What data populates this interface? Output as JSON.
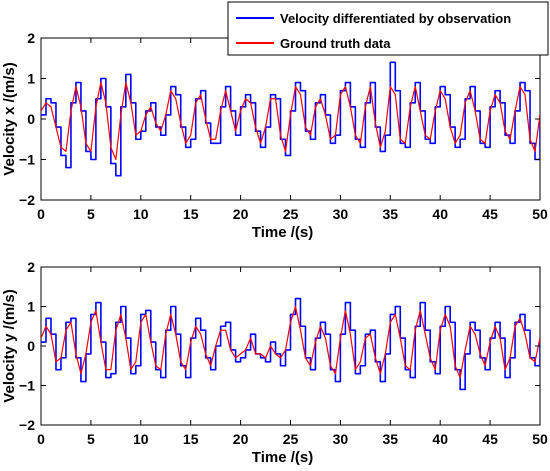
{
  "chart_data": [
    {
      "type": "line",
      "title": "",
      "xlabel": "Time /(s)",
      "ylabel": "Velocity x /(m/s)",
      "xlim": [
        0,
        50
      ],
      "ylim": [
        -2,
        2
      ],
      "xticks": [
        0,
        5,
        10,
        15,
        20,
        25,
        30,
        35,
        40,
        45,
        50
      ],
      "yticks": [
        -2,
        -1,
        0,
        1,
        2
      ],
      "grid": false,
      "legend_position": "top-right",
      "legend": [
        "Velocity differentiated by observation",
        "Ground truth data"
      ],
      "series_styles": [
        {
          "name": "Velocity differentiated by observation",
          "color": "#0000ff",
          "style": "step"
        },
        {
          "name": "Ground truth data",
          "color": "#ff0000",
          "style": "smooth"
        }
      ],
      "series": [
        {
          "name": "Velocity differentiated by observation",
          "x": [
            0,
            0.5,
            1,
            1.5,
            2,
            2.5,
            3,
            3.5,
            4,
            4.5,
            5,
            5.5,
            6,
            6.5,
            7,
            7.5,
            8,
            8.5,
            9,
            9.5,
            10,
            10.5,
            11,
            11.5,
            12,
            12.5,
            13,
            13.5,
            14,
            14.5,
            15,
            15.5,
            16,
            16.5,
            17,
            17.5,
            18,
            18.5,
            19,
            19.5,
            20,
            20.5,
            21,
            21.5,
            22,
            22.5,
            23,
            23.5,
            24,
            24.5,
            25,
            25.5,
            26,
            26.5,
            27,
            27.5,
            28,
            28.5,
            29,
            29.5,
            30,
            30.5,
            31,
            31.5,
            32,
            32.5,
            33,
            33.5,
            34,
            34.5,
            35,
            35.5,
            36,
            36.5,
            37,
            37.5,
            38,
            38.5,
            39,
            39.5,
            40,
            40.5,
            41,
            41.5,
            42,
            42.5,
            43,
            43.5,
            44,
            44.5,
            45,
            45.5,
            46,
            46.5,
            47,
            47.5,
            48,
            48.5,
            49,
            49.5,
            50
          ],
          "y": [
            0.1,
            0.5,
            0.4,
            -0.2,
            -0.9,
            -1.2,
            0.4,
            0.9,
            0.2,
            -0.8,
            -1.0,
            0.5,
            1.0,
            0.3,
            -1.1,
            -1.4,
            0.3,
            1.1,
            0.4,
            -0.5,
            -0.3,
            0.2,
            0.4,
            -0.2,
            -0.4,
            0.1,
            0.8,
            0.6,
            -0.2,
            -0.7,
            -0.5,
            0.5,
            0.7,
            -0.1,
            -0.6,
            -0.6,
            0.3,
            0.8,
            0.2,
            -0.4,
            0.3,
            0.6,
            0.4,
            -0.3,
            -0.7,
            -0.2,
            0.6,
            0.5,
            -0.5,
            -0.9,
            0.2,
            0.9,
            0.7,
            -0.3,
            -0.5,
            0.4,
            0.6,
            0.1,
            -0.6,
            -0.4,
            0.7,
            0.9,
            0.3,
            -0.5,
            -0.7,
            0.4,
            0.9,
            -0.2,
            -0.8,
            -0.4,
            1.4,
            0.7,
            -0.6,
            -0.7,
            0.4,
            0.9,
            0.2,
            -0.5,
            -0.6,
            0.3,
            0.8,
            0.6,
            -0.2,
            -0.7,
            -0.5,
            0.5,
            0.8,
            0.2,
            -0.6,
            -0.7,
            0.3,
            0.7,
            0.4,
            -0.4,
            -0.6,
            0.2,
            0.9,
            0.7,
            -0.6,
            -1.0,
            0.1
          ]
        },
        {
          "name": "Ground truth data",
          "x": [
            0,
            0.5,
            1,
            1.5,
            2,
            2.5,
            3,
            3.5,
            4,
            4.5,
            5,
            5.5,
            6,
            6.5,
            7,
            7.5,
            8,
            8.5,
            9,
            9.5,
            10,
            10.5,
            11,
            11.5,
            12,
            12.5,
            13,
            13.5,
            14,
            14.5,
            15,
            15.5,
            16,
            16.5,
            17,
            17.5,
            18,
            18.5,
            19,
            19.5,
            20,
            20.5,
            21,
            21.5,
            22,
            22.5,
            23,
            23.5,
            24,
            24.5,
            25,
            25.5,
            26,
            26.5,
            27,
            27.5,
            28,
            28.5,
            29,
            29.5,
            30,
            30.5,
            31,
            31.5,
            32,
            32.5,
            33,
            33.5,
            34,
            34.5,
            35,
            35.5,
            36,
            36.5,
            37,
            37.5,
            38,
            38.5,
            39,
            39.5,
            40,
            40.5,
            41,
            41.5,
            42,
            42.5,
            43,
            43.5,
            44,
            44.5,
            45,
            45.5,
            46,
            46.5,
            47,
            47.5,
            48,
            48.5,
            49,
            49.5,
            50
          ],
          "y": [
            0.2,
            0.4,
            0.3,
            -0.2,
            -0.7,
            -0.8,
            0.2,
            0.8,
            0.3,
            -0.6,
            -0.8,
            0.3,
            0.9,
            0.4,
            -0.7,
            -1.0,
            0.1,
            0.9,
            0.4,
            -0.4,
            -0.3,
            0.1,
            0.3,
            -0.1,
            -0.3,
            0.1,
            0.7,
            0.5,
            -0.1,
            -0.6,
            -0.4,
            0.4,
            0.6,
            0.0,
            -0.5,
            -0.5,
            0.2,
            0.7,
            0.2,
            -0.3,
            0.2,
            0.5,
            0.4,
            -0.2,
            -0.6,
            -0.2,
            0.5,
            0.5,
            -0.4,
            -0.8,
            0.1,
            0.8,
            0.6,
            -0.2,
            -0.4,
            0.3,
            0.5,
            0.1,
            -0.5,
            -0.4,
            0.6,
            0.8,
            0.3,
            -0.4,
            -0.6,
            0.3,
            0.8,
            -0.1,
            -0.7,
            -0.3,
            0.8,
            0.6,
            -0.5,
            -0.6,
            0.3,
            0.8,
            0.2,
            -0.4,
            -0.5,
            0.2,
            0.7,
            0.5,
            -0.2,
            -0.6,
            -0.4,
            0.4,
            0.7,
            0.2,
            -0.5,
            -0.6,
            0.2,
            0.6,
            0.4,
            -0.3,
            -0.5,
            0.2,
            0.8,
            0.6,
            -0.5,
            -0.8,
            0.1
          ]
        }
      ]
    },
    {
      "type": "line",
      "title": "",
      "xlabel": "Time /(s)",
      "ylabel": "Velocity y /(m/s)",
      "xlim": [
        0,
        50
      ],
      "ylim": [
        -2,
        2
      ],
      "xticks": [
        0,
        5,
        10,
        15,
        20,
        25,
        30,
        35,
        40,
        45,
        50
      ],
      "yticks": [
        -2,
        -1,
        0,
        1,
        2
      ],
      "grid": false,
      "legend_position": "none",
      "series_styles": [
        {
          "name": "Velocity differentiated by observation",
          "color": "#0000ff",
          "style": "step"
        },
        {
          "name": "Ground truth data",
          "color": "#ff0000",
          "style": "smooth"
        }
      ],
      "series": [
        {
          "name": "Velocity differentiated by observation",
          "x": [
            0,
            0.5,
            1,
            1.5,
            2,
            2.5,
            3,
            3.5,
            4,
            4.5,
            5,
            5.5,
            6,
            6.5,
            7,
            7.5,
            8,
            8.5,
            9,
            9.5,
            10,
            10.5,
            11,
            11.5,
            12,
            12.5,
            13,
            13.5,
            14,
            14.5,
            15,
            15.5,
            16,
            16.5,
            17,
            17.5,
            18,
            18.5,
            19,
            19.5,
            20,
            20.5,
            21,
            21.5,
            22,
            22.5,
            23,
            23.5,
            24,
            24.5,
            25,
            25.5,
            26,
            26.5,
            27,
            27.5,
            28,
            28.5,
            29,
            29.5,
            30,
            30.5,
            31,
            31.5,
            32,
            32.5,
            33,
            33.5,
            34,
            34.5,
            35,
            35.5,
            36,
            36.5,
            37,
            37.5,
            38,
            38.5,
            39,
            39.5,
            40,
            40.5,
            41,
            41.5,
            42,
            42.5,
            43,
            43.5,
            44,
            44.5,
            45,
            45.5,
            46,
            46.5,
            47,
            47.5,
            48,
            48.5,
            49,
            49.5,
            50
          ],
          "y": [
            0.1,
            0.7,
            0.3,
            -0.6,
            -0.3,
            0.6,
            0.7,
            -0.3,
            -0.9,
            -0.2,
            0.8,
            1.1,
            0.1,
            -0.8,
            -0.7,
            0.6,
            1.0,
            0.2,
            -0.7,
            -0.5,
            0.8,
            0.9,
            0.1,
            -0.6,
            -0.8,
            0.4,
            1.0,
            0.3,
            -0.5,
            -0.8,
            0.2,
            0.7,
            0.4,
            -0.3,
            -0.6,
            0.0,
            0.5,
            0.6,
            -0.1,
            -0.4,
            -0.3,
            -0.1,
            0.3,
            -0.2,
            -0.3,
            -0.4,
            0.1,
            -0.2,
            -0.5,
            -0.1,
            0.8,
            1.2,
            0.5,
            -0.3,
            -0.6,
            0.2,
            0.6,
            0.3,
            -0.6,
            -0.9,
            0.3,
            1.1,
            0.4,
            -0.7,
            -0.5,
            0.3,
            0.4,
            -0.4,
            -0.9,
            -0.2,
            0.8,
            1.0,
            0.2,
            -0.6,
            -0.8,
            0.5,
            1.1,
            0.4,
            -0.4,
            -0.7,
            0.5,
            1.0,
            0.6,
            -0.6,
            -1.1,
            -0.2,
            0.6,
            0.4,
            -0.3,
            -0.6,
            0.2,
            0.6,
            0.2,
            -0.8,
            -0.3,
            0.6,
            0.8,
            0.4,
            -0.3,
            -0.5,
            0.2
          ]
        },
        {
          "name": "Ground truth data",
          "x": [
            0,
            0.5,
            1,
            1.5,
            2,
            2.5,
            3,
            3.5,
            4,
            4.5,
            5,
            5.5,
            6,
            6.5,
            7,
            7.5,
            8,
            8.5,
            9,
            9.5,
            10,
            10.5,
            11,
            11.5,
            12,
            12.5,
            13,
            13.5,
            14,
            14.5,
            15,
            15.5,
            16,
            16.5,
            17,
            17.5,
            18,
            18.5,
            19,
            19.5,
            20,
            20.5,
            21,
            21.5,
            22,
            22.5,
            23,
            23.5,
            24,
            24.5,
            25,
            25.5,
            26,
            26.5,
            27,
            27.5,
            28,
            28.5,
            29,
            29.5,
            30,
            30.5,
            31,
            31.5,
            32,
            32.5,
            33,
            33.5,
            34,
            34.5,
            35,
            35.5,
            36,
            36.5,
            37,
            37.5,
            38,
            38.5,
            39,
            39.5,
            40,
            40.5,
            41,
            41.5,
            42,
            42.5,
            43,
            43.5,
            44,
            44.5,
            45,
            45.5,
            46,
            46.5,
            47,
            47.5,
            48,
            48.5,
            49,
            49.5,
            50
          ],
          "y": [
            0.2,
            0.5,
            0.3,
            -0.4,
            -0.3,
            0.4,
            0.6,
            -0.2,
            -0.7,
            -0.2,
            0.6,
            0.9,
            0.1,
            -0.6,
            -0.6,
            0.4,
            0.8,
            0.2,
            -0.6,
            -0.4,
            0.6,
            0.8,
            0.1,
            -0.5,
            -0.6,
            0.3,
            0.8,
            0.3,
            -0.4,
            -0.6,
            0.1,
            0.5,
            0.3,
            -0.2,
            -0.5,
            0.0,
            0.4,
            0.4,
            -0.1,
            -0.3,
            -0.2,
            -0.1,
            0.2,
            -0.2,
            -0.2,
            -0.3,
            0.0,
            -0.2,
            -0.3,
            -0.1,
            0.6,
            1.0,
            0.4,
            -0.3,
            -0.5,
            0.1,
            0.5,
            0.2,
            -0.5,
            -0.7,
            0.2,
            0.9,
            0.3,
            -0.6,
            -0.4,
            0.2,
            0.3,
            -0.3,
            -0.7,
            -0.2,
            0.6,
            0.8,
            0.2,
            -0.5,
            -0.6,
            0.4,
            0.9,
            0.3,
            -0.3,
            -0.6,
            0.4,
            0.8,
            0.5,
            -0.5,
            -0.8,
            -0.1,
            0.5,
            0.3,
            -0.2,
            -0.5,
            0.1,
            0.5,
            0.2,
            -0.6,
            -0.3,
            0.5,
            0.7,
            0.3,
            -0.3,
            -0.4,
            0.2
          ]
        }
      ]
    }
  ]
}
